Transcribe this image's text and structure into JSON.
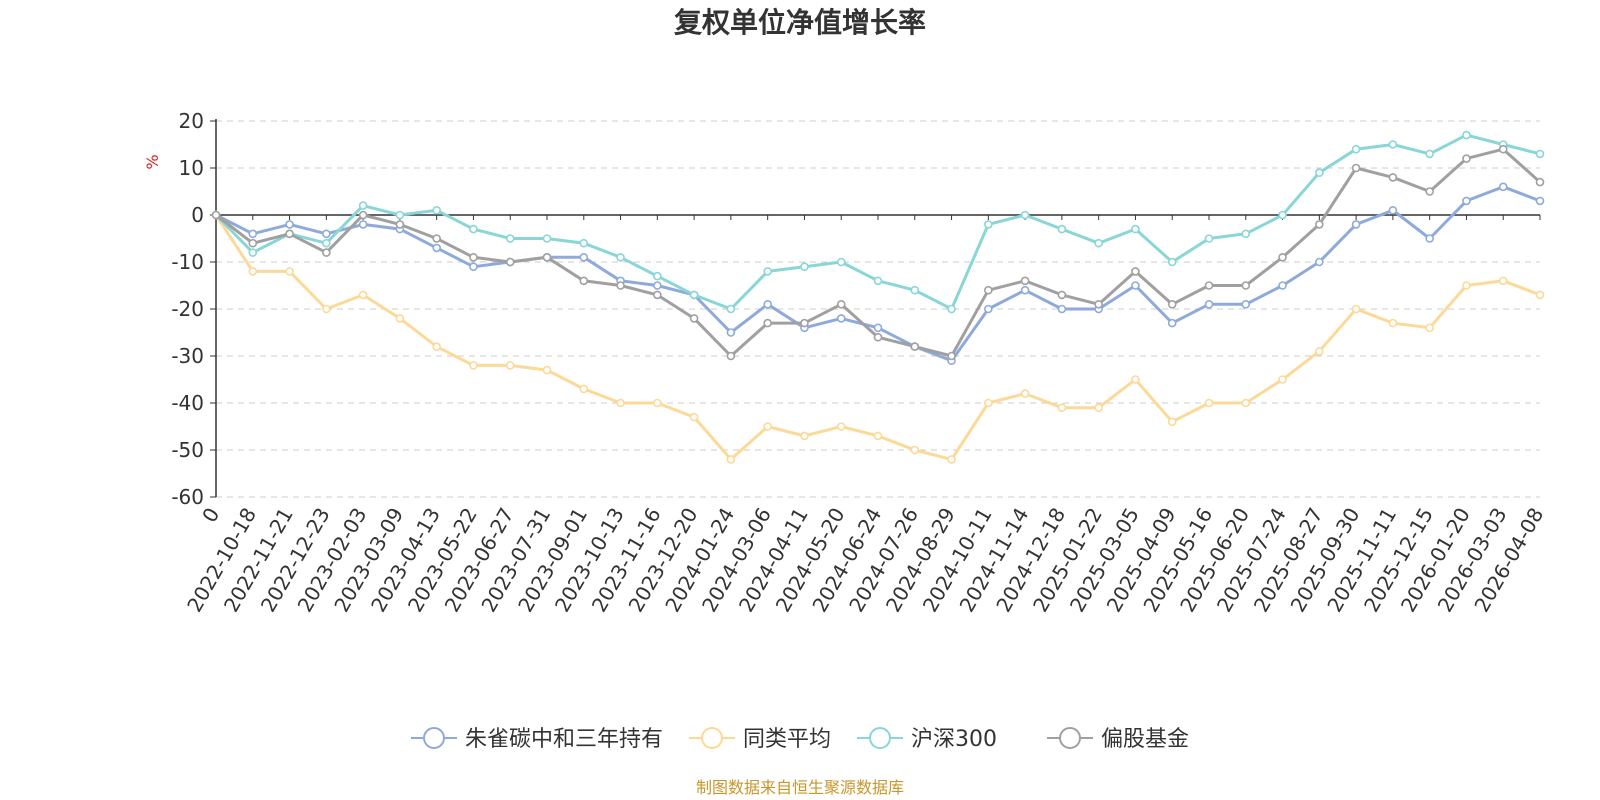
{
  "chart_data": {
    "type": "line",
    "title": "复权单位净值增长率",
    "ylabel": "%",
    "xlabel": "",
    "ylim": [
      -60,
      20
    ],
    "yticks": [
      20,
      10,
      0,
      -10,
      -20,
      -30,
      -40,
      -50,
      -60
    ],
    "grid": true,
    "legend_position": "bottom",
    "categories": [
      "0",
      "2022-10-18",
      "2022-11-21",
      "2022-12-23",
      "2023-02-03",
      "2023-03-09",
      "2023-04-13",
      "2023-05-22",
      "2023-06-27",
      "2023-07-31",
      "2023-09-01",
      "2023-10-13",
      "2023-11-16",
      "2023-12-20",
      "2024-01-24",
      "2024-03-06",
      "2024-04-11",
      "2024-05-20",
      "2024-06-24",
      "2024-07-26",
      "2024-08-29",
      "2024-10-11",
      "2024-11-14",
      "2024-12-18",
      "2025-01-22",
      "2025-03-05",
      "2025-04-09",
      "2025-05-16",
      "2025-06-20",
      "2025-07-24",
      "2025-08-27",
      "2025-09-30",
      "2025-11-11",
      "2025-12-15",
      "2026-01-20",
      "2026-03-03",
      "2026-04-08"
    ],
    "series": [
      {
        "name": "朱雀碳中和三年持有",
        "color": "#8eaadc",
        "values": [
          0,
          -4,
          -2,
          -4,
          -2,
          -3,
          -7,
          -11,
          -10,
          -9,
          -9,
          -14,
          -15,
          -17,
          -25,
          -19,
          -24,
          -22,
          -24,
          -28,
          -31,
          -20,
          -16,
          -20,
          -20,
          -15,
          -23,
          -19,
          -19,
          -15,
          -10,
          -2,
          1,
          -5,
          3,
          6,
          3
        ]
      },
      {
        "name": "同类平均",
        "color": "#fcd997",
        "values": [
          0,
          -12,
          -12,
          -20,
          -17,
          -22,
          -28,
          -32,
          -32,
          -33,
          -37,
          -40,
          -40,
          -43,
          -52,
          -45,
          -47,
          -45,
          -47,
          -50,
          -52,
          -40,
          -38,
          -41,
          -41,
          -35,
          -44,
          -40,
          -40,
          -35,
          -29,
          -20,
          -23,
          -24,
          -15,
          -14,
          -17
        ]
      },
      {
        "name": "沪深300",
        "color": "#89d6d7",
        "values": [
          0,
          -8,
          -4,
          -6,
          2,
          0,
          1,
          -3,
          -5,
          -5,
          -6,
          -9,
          -13,
          -17,
          -20,
          -12,
          -11,
          -10,
          -14,
          -16,
          -20,
          -2,
          0,
          -3,
          -6,
          -3,
          -10,
          -5,
          -4,
          0,
          9,
          14,
          15,
          13,
          17,
          15,
          13
        ]
      },
      {
        "name": "偏股基金",
        "color": "#a0a0a0",
        "values": [
          0,
          -6,
          -4,
          -8,
          0,
          -2,
          -5,
          -9,
          -10,
          -9,
          -14,
          -15,
          -17,
          -22,
          -30,
          -23,
          -23,
          -19,
          -26,
          -28,
          -30,
          -16,
          -14,
          -17,
          -19,
          -12,
          -19,
          -15,
          -15,
          -9,
          -2,
          10,
          8,
          5,
          12,
          14,
          7
        ]
      }
    ]
  },
  "source": "制图数据来自恒生聚源数据库",
  "colors": {
    "title": "#333333",
    "axis": "#333333",
    "grid": "#cccccc",
    "unit": "#e02020",
    "source": "#c8962a"
  }
}
